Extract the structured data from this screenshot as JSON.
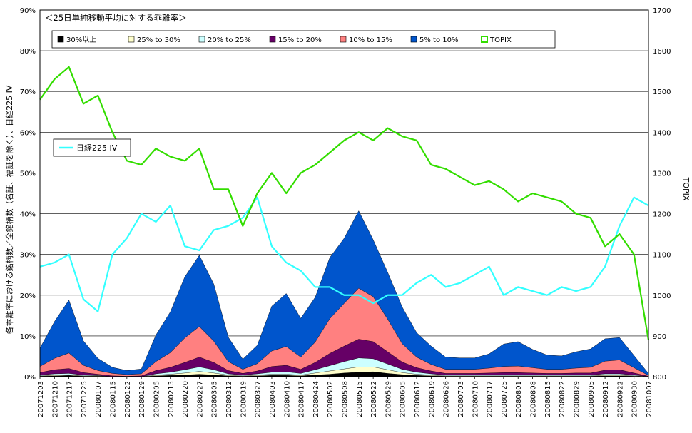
{
  "chart_data": {
    "type": "area",
    "title": "＜25日単純移動平均に対する乖離率＞",
    "ylabel_left": "各乖離率における銘柄数／全銘柄数（名証、福証を除く）、日経225 IV",
    "ylabel_right": "TOPIX",
    "y_left_range": [
      0,
      90
    ],
    "y_left_ticks": [
      "0%",
      "10%",
      "20%",
      "30%",
      "40%",
      "50%",
      "60%",
      "70%",
      "80%",
      "90%"
    ],
    "y_right_range": [
      800,
      1700
    ],
    "y_right_ticks": [
      "800",
      "900",
      "1000",
      "1100",
      "1200",
      "1300",
      "1400",
      "1500",
      "1600",
      "1700"
    ],
    "x_ticks": [
      "20071203",
      "20071210",
      "20071217",
      "20071225",
      "20080107",
      "20080115",
      "20080122",
      "20080129",
      "20080205",
      "20080213",
      "20080220",
      "20080227",
      "20080305",
      "20080312",
      "20080319",
      "20080327",
      "20080403",
      "20080410",
      "20080417",
      "20080424",
      "20080502",
      "20080508",
      "20080515",
      "20080522",
      "20080529",
      "20080605",
      "20080612",
      "20080619",
      "20080626",
      "20080703",
      "20080710",
      "20080717",
      "20080725",
      "20080801",
      "20080808",
      "20080815",
      "20080822",
      "20080829",
      "20080905",
      "20080912",
      "20080922",
      "20080930",
      "20081007"
    ],
    "x": [
      "20071203",
      "20071210",
      "20071217",
      "20071225",
      "20080107",
      "20080115",
      "20080122",
      "20080129",
      "20080205",
      "20080213",
      "20080220",
      "20080227",
      "20080305",
      "20080312",
      "20080319",
      "20080327",
      "20080403",
      "20080410",
      "20080417",
      "20080424",
      "20080502",
      "20080508",
      "20080515",
      "20080522",
      "20080529",
      "20080605",
      "20080612",
      "20080619",
      "20080626",
      "20080703",
      "20080710",
      "20080717",
      "20080725",
      "20080801",
      "20080808",
      "20080815",
      "20080822",
      "20080829",
      "20080905",
      "20080912",
      "20080922",
      "20080930",
      "20081007"
    ],
    "grid": true,
    "legend_position": "top",
    "stacked_series": [
      {
        "name": "30%以上",
        "color": "#000000",
        "values": [
          0.1,
          0.2,
          0.3,
          0.1,
          0.1,
          0,
          0,
          0,
          0.2,
          0.3,
          0.4,
          0.6,
          0.4,
          0.2,
          0.1,
          0.2,
          0.3,
          0.3,
          0.2,
          0.4,
          0.6,
          0.9,
          1.1,
          1.2,
          0.8,
          0.5,
          0.3,
          0.2,
          0.1,
          0.1,
          0.1,
          0.1,
          0.1,
          0.1,
          0.1,
          0.1,
          0.1,
          0.1,
          0.1,
          0.2,
          0.2,
          0.1,
          0
        ]
      },
      {
        "name": "25% to 30%",
        "color": "#ffffcc",
        "values": [
          0.1,
          0.2,
          0.2,
          0.1,
          0.1,
          0,
          0,
          0,
          0.2,
          0.3,
          0.5,
          0.7,
          0.5,
          0.2,
          0.1,
          0.2,
          0.3,
          0.3,
          0.2,
          0.5,
          0.8,
          1.0,
          1.3,
          1.2,
          0.9,
          0.5,
          0.3,
          0.2,
          0.1,
          0.1,
          0.1,
          0.1,
          0.1,
          0.1,
          0.1,
          0.1,
          0.1,
          0.1,
          0.1,
          0.2,
          0.2,
          0.1,
          0
        ]
      },
      {
        "name": "20% to 25%",
        "color": "#ccffff",
        "values": [
          0.2,
          0.3,
          0.3,
          0.2,
          0.1,
          0,
          0,
          0,
          0.3,
          0.5,
          0.8,
          1.1,
          0.8,
          0.3,
          0.2,
          0.3,
          0.5,
          0.6,
          0.4,
          0.8,
          1.3,
          1.8,
          2.2,
          2.0,
          1.4,
          0.8,
          0.5,
          0.3,
          0.2,
          0.2,
          0.2,
          0.2,
          0.2,
          0.2,
          0.2,
          0.2,
          0.2,
          0.2,
          0.2,
          0.3,
          0.3,
          0.2,
          0
        ]
      },
      {
        "name": "15% to 20%",
        "color": "#660066",
        "values": [
          0.6,
          1.0,
          1.2,
          0.6,
          0.3,
          0.2,
          0.1,
          0.2,
          0.8,
          1.2,
          1.8,
          2.4,
          1.8,
          0.8,
          0.4,
          0.7,
          1.4,
          1.6,
          1.0,
          1.8,
          3.0,
          3.8,
          4.6,
          4.2,
          3.0,
          1.8,
          1.1,
          0.7,
          0.4,
          0.4,
          0.4,
          0.5,
          0.6,
          0.6,
          0.5,
          0.4,
          0.4,
          0.5,
          0.5,
          0.9,
          1.0,
          0.5,
          0.1
        ]
      },
      {
        "name": "10% to 15%",
        "color": "#ff8080",
        "values": [
          1.5,
          2.8,
          3.8,
          1.8,
          0.9,
          0.6,
          0.4,
          0.5,
          2.2,
          3.6,
          6.0,
          7.5,
          5.2,
          2.2,
          1.0,
          1.8,
          3.8,
          4.6,
          3.0,
          5.0,
          8.5,
          10.5,
          12.5,
          11.0,
          8.0,
          4.5,
          2.6,
          1.6,
          1.0,
          1.0,
          1.0,
          1.2,
          1.5,
          1.6,
          1.3,
          1.0,
          1.0,
          1.2,
          1.4,
          2.2,
          2.4,
          1.3,
          0.2
        ]
      },
      {
        "name": "5% to 10%",
        "color": "#0055cc",
        "values": [
          4.5,
          9.0,
          13.0,
          6.0,
          3.0,
          1.5,
          1.0,
          1.2,
          6.5,
          10.0,
          15.0,
          17.5,
          14.0,
          6.0,
          2.5,
          4.5,
          11.0,
          13.0,
          9.5,
          11.0,
          15.0,
          16.0,
          19.0,
          14.0,
          11.5,
          9.0,
          6.0,
          4.5,
          3.0,
          2.8,
          2.8,
          3.5,
          5.5,
          6.0,
          4.5,
          3.5,
          3.3,
          4.0,
          4.5,
          5.5,
          5.5,
          3.0,
          0.5
        ]
      }
    ],
    "line_series": [
      {
        "name": "日経225 IV",
        "color": "#33ffff",
        "axis": "left",
        "values": [
          27,
          28,
          30,
          19,
          16,
          30,
          34,
          40,
          38,
          42,
          32,
          31,
          36,
          37,
          39,
          44,
          32,
          28,
          26,
          22,
          22,
          20,
          20,
          18,
          20,
          20,
          23,
          25,
          22,
          23,
          25,
          27,
          20,
          22,
          21,
          20,
          22,
          21,
          22,
          27,
          37,
          44,
          42
        ]
      },
      {
        "name": "TOPIX",
        "color": "#33dd00",
        "axis": "right",
        "values": [
          1480,
          1530,
          1560,
          1470,
          1490,
          1400,
          1330,
          1320,
          1360,
          1340,
          1330,
          1360,
          1260,
          1260,
          1170,
          1250,
          1300,
          1250,
          1300,
          1320,
          1350,
          1380,
          1400,
          1380,
          1410,
          1390,
          1380,
          1320,
          1310,
          1290,
          1270,
          1280,
          1260,
          1230,
          1250,
          1240,
          1230,
          1200,
          1190,
          1120,
          1150,
          1100,
          890
        ]
      }
    ]
  }
}
